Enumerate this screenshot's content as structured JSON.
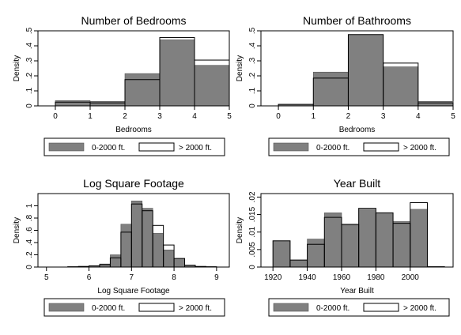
{
  "chart_data": [
    {
      "type": "bar",
      "title": "Number of Bedrooms",
      "xlabel": "Bedrooms",
      "ylabel": "Density",
      "xlim": [
        -0.5,
        5
      ],
      "ylim": [
        0,
        0.5
      ],
      "xticks": [
        "0",
        "1",
        "2",
        "3",
        "4",
        "5"
      ],
      "yticks": [
        "0",
        ".1",
        ".2",
        ".3",
        ".4",
        ".5"
      ],
      "bins": [
        [
          0,
          1
        ],
        [
          1,
          2
        ],
        [
          2,
          3
        ],
        [
          3,
          4
        ],
        [
          4,
          5
        ]
      ],
      "series": [
        {
          "name": "0-2000 ft.",
          "values": [
            0.035,
            0.03,
            0.215,
            0.44,
            0.27
          ]
        },
        {
          "name": "> 2000 ft.",
          "values": [
            0.025,
            0.02,
            0.175,
            0.455,
            0.305
          ]
        }
      ],
      "legend_position": "bottom"
    },
    {
      "type": "bar",
      "title": "Number of Bathrooms",
      "xlabel": "Bedrooms",
      "ylabel": "Density",
      "xlim": [
        -0.5,
        5
      ],
      "ylim": [
        0,
        0.5
      ],
      "xticks": [
        "0",
        "1",
        "2",
        "3",
        "4",
        "5"
      ],
      "yticks": [
        "0",
        ".1",
        ".2",
        ".3",
        ".4",
        ".5"
      ],
      "bins": [
        [
          0,
          1
        ],
        [
          1,
          2
        ],
        [
          2,
          3
        ],
        [
          3,
          4
        ],
        [
          4,
          5
        ]
      ],
      "series": [
        {
          "name": "0-2000 ft.",
          "values": [
            0.01,
            0.225,
            0.47,
            0.26,
            0.03
          ]
        },
        {
          "name": "> 2000 ft.",
          "values": [
            0.01,
            0.185,
            0.475,
            0.285,
            0.02
          ]
        }
      ],
      "legend_position": "bottom"
    },
    {
      "type": "bar",
      "title": "Log Square Footage",
      "xlabel": "Log Square Footage",
      "ylabel": "Density",
      "xlim": [
        4.8,
        9.3
      ],
      "ylim": [
        0,
        1.2
      ],
      "xticks": [
        "5",
        "6",
        "7",
        "8",
        "9"
      ],
      "yticks": [
        "0",
        ".2",
        ".4",
        ".6",
        ".8",
        "1"
      ],
      "bins": [
        [
          5.5,
          5.75
        ],
        [
          5.75,
          6
        ],
        [
          6,
          6.25
        ],
        [
          6.25,
          6.5
        ],
        [
          6.5,
          6.75
        ],
        [
          6.75,
          7
        ],
        [
          7,
          7.25
        ],
        [
          7.25,
          7.5
        ],
        [
          7.5,
          7.75
        ],
        [
          7.75,
          8
        ],
        [
          8,
          8.25
        ],
        [
          8.25,
          8.5
        ],
        [
          8.5,
          8.75
        ],
        [
          8.75,
          9
        ]
      ],
      "series": [
        {
          "name": "0-2000 ft.",
          "values": [
            0.005,
            0.01,
            0.02,
            0.05,
            0.2,
            0.7,
            1.08,
            0.96,
            0.55,
            0.28,
            0.14,
            0.02,
            0.005,
            0.005
          ]
        },
        {
          "name": "> 2000 ft.",
          "values": [
            0.005,
            0.01,
            0.02,
            0.04,
            0.15,
            0.57,
            1.03,
            0.92,
            0.68,
            0.36,
            0.14,
            0.03,
            0.01,
            0.005
          ]
        }
      ],
      "legend_position": "bottom"
    },
    {
      "type": "bar",
      "title": "Year Built",
      "xlabel": "Year Built",
      "ylabel": "Density",
      "xlim": [
        1913,
        2025
      ],
      "ylim": [
        0,
        0.021
      ],
      "xticks": [
        "1920",
        "1940",
        "1960",
        "1980",
        "2000"
      ],
      "yticks": [
        "0",
        ".005",
        ".01",
        ".015",
        ".02"
      ],
      "bins": [
        [
          1920,
          1930
        ],
        [
          1930,
          1940
        ],
        [
          1940,
          1950
        ],
        [
          1950,
          1960
        ],
        [
          1960,
          1970
        ],
        [
          1970,
          1980
        ],
        [
          1980,
          1990
        ],
        [
          1990,
          2000
        ],
        [
          2000,
          2010
        ],
        [
          2010,
          2020
        ]
      ],
      "series": [
        {
          "name": "0-2000 ft.",
          "values": [
            0.0075,
            0.002,
            0.008,
            0.0155,
            0.012,
            0.0165,
            0.0155,
            0.013,
            0.0165,
            0.0
          ]
        },
        {
          "name": "> 2000 ft.",
          "values": [
            0.0075,
            0.002,
            0.0065,
            0.0142,
            0.0122,
            0.0168,
            0.0155,
            0.0125,
            0.0184,
            0.0001
          ]
        }
      ],
      "legend_position": "bottom"
    }
  ],
  "legend": {
    "labels": [
      "0-2000 ft.",
      "> 2000 ft."
    ]
  },
  "colors": {
    "filled": "#808080",
    "outline": "#000000",
    "frame": "#000000"
  }
}
